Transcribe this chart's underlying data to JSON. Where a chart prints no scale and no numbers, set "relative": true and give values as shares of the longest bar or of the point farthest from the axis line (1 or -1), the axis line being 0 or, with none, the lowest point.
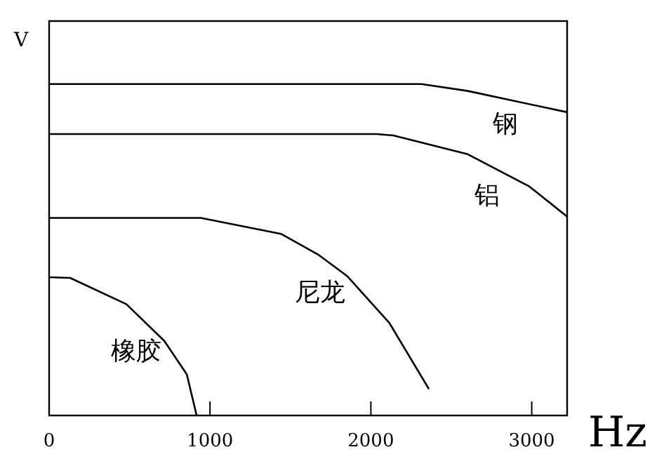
{
  "chart_data": {
    "type": "line",
    "relative": true,
    "ylabel": "V",
    "xlabel": "Hz",
    "xlim": [
      0,
      3220
    ],
    "xticks": [
      0,
      1000,
      2000,
      3000
    ],
    "series": [
      {
        "name": "钢",
        "color": "#000000",
        "x": [
          0,
          2314,
          2603,
          3220
        ],
        "values": [
          1,
          1,
          0.979,
          0.915
        ]
      },
      {
        "name": "铝",
        "color": "#000000",
        "x": [
          0,
          2035,
          2140,
          2603,
          2985,
          3220
        ],
        "values": [
          0.849,
          0.849,
          0.845,
          0.788,
          0.691,
          0.6
        ]
      },
      {
        "name": "尼龙",
        "color": "#000000",
        "x": [
          0,
          943,
          1441,
          1677,
          1852,
          2114,
          2358
        ],
        "values": [
          0.596,
          0.596,
          0.548,
          0.484,
          0.421,
          0.28,
          0.082
        ]
      },
      {
        "name": "橡胶",
        "color": "#000000",
        "x": [
          0,
          131,
          480,
          716,
          856,
          917
        ],
        "values": [
          0.417,
          0.415,
          0.336,
          0.225,
          0.124,
          0
        ]
      }
    ]
  }
}
